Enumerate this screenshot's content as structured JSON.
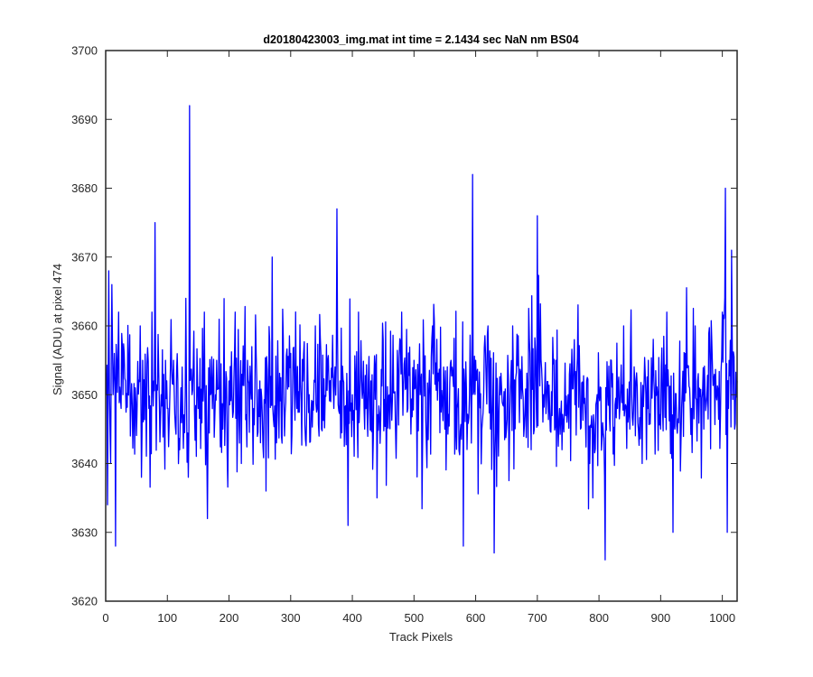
{
  "chart_data": {
    "type": "line",
    "title": "d20180423003_img.mat int time = 2.1434 sec  NaN nm BS04",
    "xlabel": "Track Pixels",
    "ylabel": "Signal (ADU) at pixel 474",
    "xlim": [
      0,
      1024
    ],
    "ylim": [
      3620,
      3700
    ],
    "xticks": [
      0,
      100,
      200,
      300,
      400,
      500,
      600,
      700,
      800,
      900,
      1000
    ],
    "yticks": [
      3620,
      3630,
      3640,
      3650,
      3660,
      3670,
      3680,
      3690,
      3700
    ],
    "xtick_labels": [
      "0",
      "100",
      "200",
      "300",
      "400",
      "500",
      "600",
      "700",
      "800",
      "900",
      "1000"
    ],
    "ytick_labels": [
      "3620",
      "3630",
      "3640",
      "3650",
      "3660",
      "3670",
      "3680",
      "3690",
      "3700"
    ],
    "grid": false,
    "line_color": "#0000ff",
    "series": [
      {
        "x": [
          1,
          3,
          5,
          7,
          8,
          10,
          12,
          14,
          16,
          18,
          21,
          25,
          28,
          30,
          32,
          40,
          48,
          56,
          58,
          60,
          65,
          70,
          75,
          78,
          80,
          90,
          100,
          110,
          120,
          130,
          134,
          136,
          140,
          150,
          160,
          165,
          170,
          180,
          190,
          200,
          210,
          220,
          230,
          240,
          250,
          260,
          270,
          280,
          290,
          300,
          310,
          320,
          330,
          340,
          350,
          360,
          370,
          375,
          380,
          393,
          400,
          410,
          420,
          430,
          440,
          450,
          460,
          470,
          480,
          490,
          500,
          510,
          520,
          530,
          540,
          550,
          560,
          570,
          580,
          590,
          595,
          600,
          610,
          620,
          630,
          640,
          650,
          660,
          670,
          680,
          690,
          700,
          710,
          720,
          730,
          740,
          750,
          760,
          770,
          780,
          790,
          800,
          810,
          820,
          830,
          840,
          850,
          860,
          870,
          880,
          890,
          900,
          910,
          920,
          930,
          940,
          950,
          960,
          970,
          980,
          990,
          1000,
          1005,
          1008,
          1010,
          1015,
          1020,
          1024
        ],
        "y": [
          3650,
          3634,
          3668,
          3645,
          3640,
          3666,
          3650,
          3656,
          3628,
          3655,
          3662,
          3648,
          3650,
          3656,
          3652,
          3644,
          3651,
          3660,
          3638,
          3655,
          3650,
          3648,
          3662,
          3652,
          3675,
          3650,
          3648,
          3655,
          3642,
          3664,
          3638,
          3692,
          3650,
          3648,
          3662,
          3632,
          3650,
          3655,
          3645,
          3652,
          3662,
          3640,
          3655,
          3648,
          3652,
          3636,
          3670,
          3650,
          3644,
          3656,
          3648,
          3652,
          3650,
          3660,
          3645,
          3655,
          3648,
          3677,
          3652,
          3631,
          3650,
          3662,
          3645,
          3652,
          3635,
          3658,
          3650,
          3645,
          3662,
          3648,
          3655,
          3650,
          3643,
          3660,
          3652,
          3645,
          3655,
          3648,
          3628,
          3650,
          3682,
          3655,
          3645,
          3660,
          3627,
          3650,
          3645,
          3660,
          3652,
          3648,
          3642,
          3676,
          3650,
          3648,
          3655,
          3642,
          3650,
          3658,
          3645,
          3652,
          3635,
          3650,
          3626,
          3655,
          3648,
          3660,
          3645,
          3652,
          3640,
          3655,
          3650,
          3645,
          3662,
          3630,
          3650,
          3656,
          3648,
          3652,
          3645,
          3655,
          3650,
          3662,
          3680,
          3630,
          3648,
          3671,
          3645,
          3652
        ]
      }
    ]
  }
}
